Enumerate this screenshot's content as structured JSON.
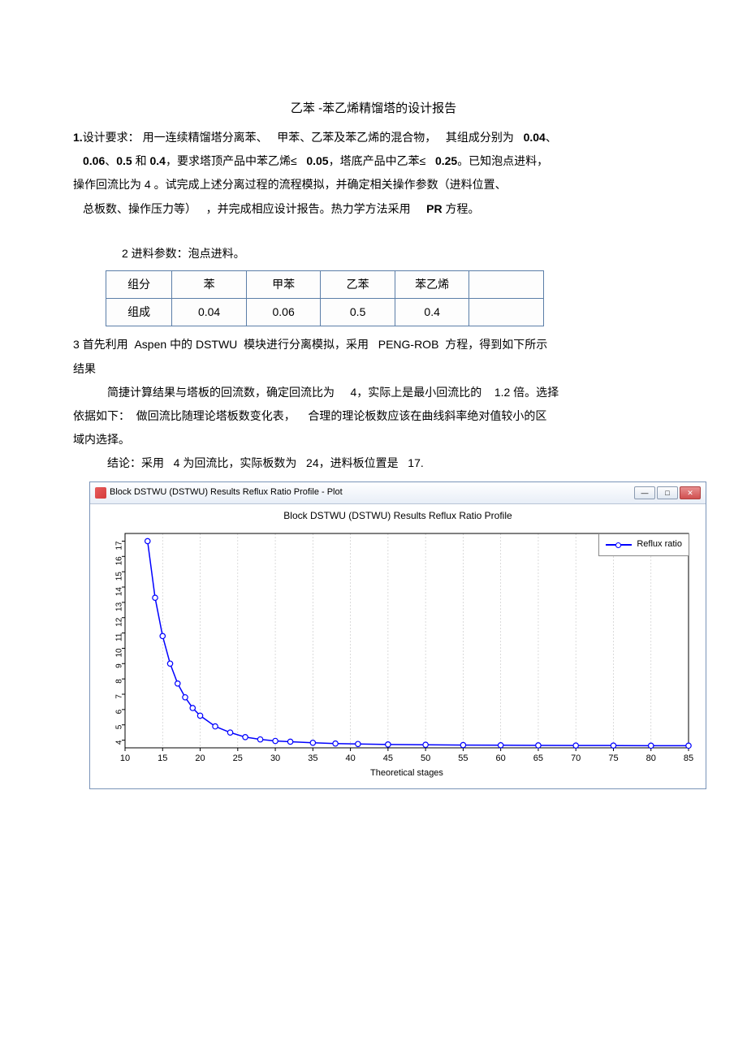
{
  "title": "乙苯 -苯乙烯精馏塔的设计报告",
  "section1": {
    "label": "1.",
    "heading": "设计要求：",
    "l1a": "用一连续精馏塔分离苯、",
    "l1b": "甲苯、乙苯及苯乙烯的混合物，",
    "l1c": "其组成分别为",
    "v1": "0.04",
    "sep1": "、",
    "v2": "0.06",
    "sep2": "、",
    "v3": "0.5",
    "and": "和",
    "v4": "0.4",
    "l2a": "，要求塔顶产品中苯乙烯≤",
    "v5": "0.05",
    "l2b": "，塔底产品中乙苯≤",
    "v6": "0.25",
    "l2c": "。已知泡点进料，",
    "l3": "操作回流比为 4 。试完成上述分离过程的流程模拟，并确定相关操作参数（进料位置、",
    "l4a": "总板数、操作压力等）",
    "l4b": "，并完成相应设计报告。热力学方法采用",
    "l4c": "PR",
    "l4d": "方程。"
  },
  "section2": {
    "heading": "2  进料参数：泡点进料。"
  },
  "table": {
    "row1_label": "组分",
    "row2_label": "组成",
    "headers": [
      "苯",
      "甲苯",
      "乙苯",
      "苯乙烯",
      ""
    ],
    "values": [
      "0.04",
      "0.06",
      "0.5",
      "0.4",
      ""
    ]
  },
  "section3": {
    "l1a": "3 首先利用",
    "l1b": "Aspen",
    "l1c": "中的",
    "l1d": "DSTWU",
    "l1e": "模块进行分离模拟，采用",
    "l1f": "PENG-ROB",
    "l1g": "方程，得到如下所示",
    "l2": "结果",
    "l3a": "简捷计算结果与塔板的回流数，确定回流比为",
    "l3b": "4",
    "l3c": "，实际上是最小回流比的",
    "l3d": "1.2",
    "l3e": "倍。选择",
    "l4a": "依据如下：",
    "l4b": "做回流比随理论塔板数变化表，",
    "l4c": "合理的理论板数应该在曲线斜率绝对值较小的区",
    "l5": "域内选择。",
    "l6a": "结论：采用",
    "l6b": "4",
    "l6c": "为回流比，实际板数为",
    "l6d": "24",
    "l6e": "，进料板位置是",
    "l6f": "17."
  },
  "chart": {
    "window_title": "Block DSTWU (DSTWU) Results Reflux Ratio Profile - Plot",
    "plot_title": "Block DSTWU (DSTWU) Results Reflux Ratio Profile",
    "legend": "Reflux ratio",
    "xlabel": "Theoretical stages",
    "xlim": [
      10,
      85
    ],
    "ylim": [
      3.5,
      17.5
    ],
    "xticks": [
      10,
      15,
      20,
      25,
      30,
      35,
      40,
      45,
      50,
      55,
      60,
      65,
      70,
      75,
      80,
      85
    ],
    "yticks": [
      4,
      5,
      6,
      7,
      8,
      9,
      10,
      11,
      12,
      13,
      14,
      15,
      16,
      17
    ],
    "series_color": "#0000ff",
    "marker_fill": "#ffffff",
    "grid_color": "#cccccc",
    "background": "#ffffff",
    "data": [
      {
        "x": 13,
        "y": 17.0
      },
      {
        "x": 14,
        "y": 13.3
      },
      {
        "x": 15,
        "y": 10.8
      },
      {
        "x": 16,
        "y": 9.0
      },
      {
        "x": 17,
        "y": 7.7
      },
      {
        "x": 18,
        "y": 6.8
      },
      {
        "x": 19,
        "y": 6.1
      },
      {
        "x": 20,
        "y": 5.6
      },
      {
        "x": 22,
        "y": 4.9
      },
      {
        "x": 24,
        "y": 4.5
      },
      {
        "x": 26,
        "y": 4.2
      },
      {
        "x": 28,
        "y": 4.05
      },
      {
        "x": 30,
        "y": 3.95
      },
      {
        "x": 32,
        "y": 3.9
      },
      {
        "x": 35,
        "y": 3.83
      },
      {
        "x": 38,
        "y": 3.78
      },
      {
        "x": 41,
        "y": 3.75
      },
      {
        "x": 45,
        "y": 3.72
      },
      {
        "x": 50,
        "y": 3.7
      },
      {
        "x": 55,
        "y": 3.68
      },
      {
        "x": 60,
        "y": 3.67
      },
      {
        "x": 65,
        "y": 3.66
      },
      {
        "x": 70,
        "y": 3.65
      },
      {
        "x": 75,
        "y": 3.65
      },
      {
        "x": 80,
        "y": 3.64
      },
      {
        "x": 85,
        "y": 3.64
      }
    ]
  }
}
